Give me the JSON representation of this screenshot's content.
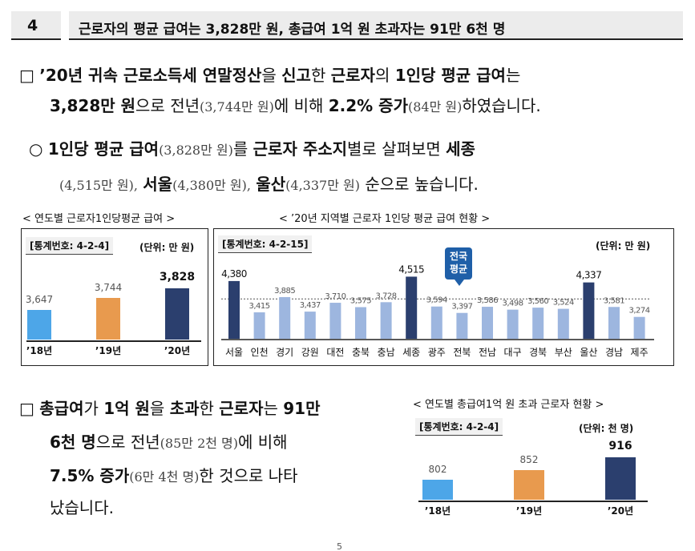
{
  "header": {
    "number": "4",
    "title": "근로자의 평균 급여는 3,828만 원, 총급여 1억 원 초과자는 91만 6천 명"
  },
  "bullet1": {
    "marker": "□",
    "l1_a": "’20년 귀속 근로소득세 연말정산",
    "l1_b": "을",
    "l1_c": "신고",
    "l1_d": "한",
    "l1_e": "근로자",
    "l1_f": "의",
    "l1_g": "1인당 평균 급여",
    "l1_h": "는",
    "l2_a": "3,828만 원",
    "l2_b": "으로 전년",
    "l2_c": "(3,744만 원)",
    "l2_d": "에 비해",
    "l2_e": "2.2% 증가",
    "l2_f": "(84만 원)",
    "l2_g": "하였습니다."
  },
  "bullet2": {
    "marker": "○",
    "l1_a": "1인당 평균 급여",
    "l1_b": "(3,828만 원)",
    "l1_c": "를",
    "l1_d": "근로자 주소지",
    "l1_e": "별로 살펴보면",
    "l1_f": "세종",
    "l2_a": "(4,515만 원),",
    "l2_b": "서울",
    "l2_c": "(4,380만 원),",
    "l2_d": "울산",
    "l2_e": "(4,337만 원)",
    "l2_f": "순으로 높습니다."
  },
  "chart1": {
    "caption": "< 연도별 근로자1인당평균 급여 >",
    "stat_no": "[통계번호: 4-2-4]",
    "unit": "(단위: 만 원)"
  },
  "chart2": {
    "caption": "< ’20년 지역별 근로자 1인당 평균 급여 현황 >",
    "stat_no": "[통계번호: 4-2-15]",
    "unit": "(단위: 만 원)",
    "callout": "전국\n평균"
  },
  "bullet3": {
    "marker": "□",
    "l1_a": "총급여",
    "l1_b": "가",
    "l1_c": "1억 원",
    "l1_d": "을",
    "l1_e": "초과",
    "l1_f": "한",
    "l1_g": "근로자",
    "l1_h": "는",
    "l1_i": "91만",
    "l2_a": "6천 명",
    "l2_b": "으로 전년",
    "l2_c": "(85만 2천 명)",
    "l2_d": "에 비해",
    "l3_a": "7.5% 증가",
    "l3_b": "(6만 4천 명)",
    "l3_c": "한 것으로 나타",
    "l4_a": "났습니다."
  },
  "chart3": {
    "caption": "< 연도별 총급여1억 원 초과 근로자 현황 >",
    "stat_no": "[통계번호: 4-2-4]",
    "unit": "(단위: 천 명)"
  },
  "page_number": "5",
  "colors": {
    "light_blue": "#4da6e8",
    "orange": "#e89a4e",
    "navy": "#2b3f6e",
    "region_light": "#9db6df",
    "callout": "#1f5fa8"
  },
  "chart_data": [
    {
      "type": "bar",
      "categories": [
        "’18년",
        "’19년",
        "’20년"
      ],
      "values": [
        3647,
        3744,
        3828
      ],
      "labels": [
        "3,647",
        "3,744",
        "3,828"
      ],
      "ylim": [
        3400,
        3900
      ]
    },
    {
      "type": "bar",
      "categories": [
        "서울",
        "인천",
        "경기",
        "강원",
        "대전",
        "충북",
        "충남",
        "세종",
        "광주",
        "전북",
        "전남",
        "대구",
        "경북",
        "부산",
        "울산",
        "경남",
        "제주"
      ],
      "values": [
        4380,
        3415,
        3885,
        3437,
        3710,
        3575,
        3728,
        4515,
        3594,
        3397,
        3586,
        3498,
        3560,
        3524,
        4337,
        3581,
        3274
      ],
      "labels": [
        "4,380",
        "3,415",
        "3,885",
        "3,437",
        "3,710",
        "3,575",
        "3,728",
        "4,515",
        "3,594",
        "3,397",
        "3,586",
        "3,498",
        "3,560",
        "3,524",
        "4,337",
        "3,581",
        "3,274"
      ],
      "highlight": [
        "서울",
        "세종",
        "울산"
      ],
      "reference_line": 3828,
      "ylim": [
        2600,
        4600
      ]
    },
    {
      "type": "bar",
      "categories": [
        "’18년",
        "’19년",
        "’20년"
      ],
      "values": [
        802,
        852,
        916
      ],
      "labels": [
        "802",
        "852",
        "916"
      ],
      "ylim": [
        700,
        930
      ]
    }
  ]
}
